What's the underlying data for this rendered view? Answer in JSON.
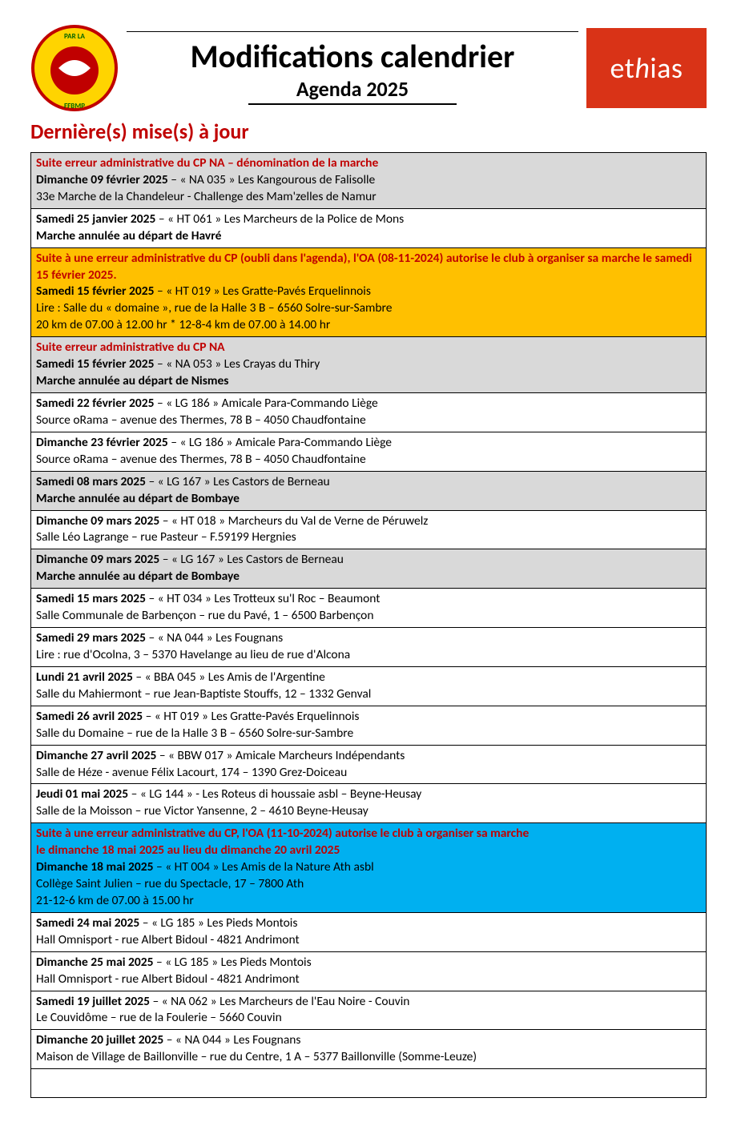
{
  "header": {
    "title_main": "Modifications calendrier",
    "title_sub": "Agenda 2025",
    "logo_right_text": "ethias"
  },
  "section_title": "Dernière(s) mise(s) à jour",
  "colors": {
    "red_text": "#c00000",
    "grey_bg": "#d9d9d9",
    "orange_bg": "#ffc000",
    "blue_bg": "#00b0f0",
    "ethias_bg": "#d93317"
  },
  "rows": [
    {
      "bg": "grey",
      "lines": [
        {
          "text": "Suite erreur administrative du CP NA – dénomination de la marche",
          "style": "red"
        },
        {
          "prefix": "Dimanche 09 février 2025",
          "prefix_style": "b",
          "rest": " – « NA  035 » Les Kangourous de Falisolle"
        },
        {
          "text": "33e Marche de la Chandeleur - Challenge des Mam'zelles de Namur"
        }
      ]
    },
    {
      "bg": "white",
      "lines": [
        {
          "prefix": "Samedi 25 janvier 2025",
          "prefix_style": "b",
          "rest": " – « HT  061 » Les Marcheurs de la Police de Mons"
        },
        {
          "text": "Marche annulée au départ de Havré",
          "style": "b"
        }
      ]
    },
    {
      "bg": "orange",
      "lines": [
        {
          "text": "Suite à une erreur administrative du CP (oubli dans l'agenda), l'OA (08-11-2024) autorise le club à organiser sa marche le samedi 15 février 2025.",
          "style": "red"
        },
        {
          "prefix": "Samedi 15 février 2025",
          "prefix_style": "b",
          "rest": " – « HT  019 » Les Gratte-Pavés Erquelinnois"
        },
        {
          "text": "Lire : Salle du « domaine », rue de la Halle 3 B – 6560 Solre-sur-Sambre"
        },
        {
          "text": "20 km de 07.00 à 12.00 hr * 12-8-4 km de 07.00 à 14.00 hr"
        }
      ]
    },
    {
      "bg": "grey",
      "lines": [
        {
          "text": "Suite erreur administrative du CP NA",
          "style": "red"
        },
        {
          "prefix": "Samedi 15 février 2025",
          "prefix_style": "b",
          "rest": " – « NA  053 » Les Crayas du Thiry"
        },
        {
          "text": "Marche annulée au départ de Nismes",
          "style": "b"
        }
      ]
    },
    {
      "bg": "white",
      "lines": [
        {
          "prefix": "Samedi 22 février 2025",
          "prefix_style": "b",
          "rest": " – « LG 186 » Amicale Para-Commando Liège"
        },
        {
          "text": "Source oRama – avenue des Thermes, 78 B – 4050 Chaudfontaine"
        }
      ]
    },
    {
      "bg": "white",
      "lines": [
        {
          "prefix": "Dimanche 23 février 2025",
          "prefix_style": "b",
          "rest": " – « LG 186 » Amicale Para-Commando Liège"
        },
        {
          "text": "Source oRama – avenue des Thermes, 78 B – 4050 Chaudfontaine"
        }
      ]
    },
    {
      "bg": "grey",
      "lines": [
        {
          "prefix": "Samedi 08 mars 2025",
          "prefix_style": "b",
          "rest": " – « LG  167 » Les Castors de Berneau"
        },
        {
          "text": "Marche annulée au départ de Bombaye",
          "style": "b"
        }
      ]
    },
    {
      "bg": "white",
      "lines": [
        {
          "prefix": "Dimanche 09 mars 2025",
          "prefix_style": "b",
          "rest": " – « HT  018 » Marcheurs du Val de Verne de Péruwelz"
        },
        {
          "text": "Salle Léo Lagrange – rue Pasteur – F.59199 Hergnies"
        }
      ]
    },
    {
      "bg": "grey",
      "lines": [
        {
          "prefix": "Dimanche 09 mars 2025",
          "prefix_style": "b",
          "rest": " – « LG  167 » Les Castors de Berneau"
        },
        {
          "text": "Marche annulée au départ de Bombaye",
          "style": "b"
        }
      ]
    },
    {
      "bg": "white",
      "lines": [
        {
          "prefix": "Samedi 15 mars 2025",
          "prefix_style": "b",
          "rest": " – « HT  034 » Les Trotteux su'l Roc – Beaumont"
        },
        {
          "text": "Salle Communale de Barbençon – rue du Pavé, 1 – 6500 Barbençon"
        }
      ]
    },
    {
      "bg": "white",
      "lines": [
        {
          "prefix": "Samedi 29 mars 2025",
          "prefix_style": "b",
          "rest": " – « NA  044 » Les Fougnans"
        },
        {
          "text": "Lire : rue d'Ocolna, 3 – 5370 Havelange au lieu de rue d'Alcona"
        }
      ]
    },
    {
      "bg": "white",
      "lines": [
        {
          "prefix": "Lundi 21 avril 2025",
          "prefix_style": "b",
          "rest": " – « BBA 045 » Les Amis de l'Argentine"
        },
        {
          "text": "Salle du Mahiermont – rue Jean-Baptiste Stouffs, 12 – 1332 Genval"
        }
      ]
    },
    {
      "bg": "white",
      "lines": [
        {
          "prefix": "Samedi 26 avril 2025",
          "prefix_style": "b",
          "rest": " – « HT  019 » Les Gratte-Pavés Erquelinnois"
        },
        {
          "text": "Salle du Domaine – rue de la Halle 3 B – 6560 Solre-sur-Sambre"
        }
      ]
    },
    {
      "bg": "white",
      "lines": [
        {
          "prefix": "Dimanche 27 avril 2025",
          "prefix_style": "b",
          "rest": " – « BBW 017 » Amicale Marcheurs Indépendants"
        },
        {
          "text": "Salle de Héze - avenue Félix Lacourt, 174 – 1390 Grez-Doiceau"
        }
      ]
    },
    {
      "bg": "white",
      "lines": [
        {
          "prefix": "Jeudi 01 mai 2025",
          "prefix_style": "b",
          "rest": " – « LG  144 » - Les Roteus di houssaie asbl – Beyne-Heusay"
        },
        {
          "text": "Salle de la Moisson – rue Victor Yansenne, 2 – 4610 Beyne-Heusay"
        }
      ]
    },
    {
      "bg": "blue",
      "lines": [
        {
          "text": "Suite à une erreur administrative du CP, l'OA (11-10-2024) autorise le club à organiser sa marche",
          "style": "red"
        },
        {
          "text": "le dimanche 18 mai 2025 au lieu du dimanche 20 avril 2025",
          "style": "red"
        },
        {
          "prefix": "Dimanche 18 mai 2025",
          "prefix_style": "b",
          "rest": " – « HT  004 » Les Amis de la Nature Ath asbl"
        },
        {
          "text": "Collège Saint Julien – rue du Spectacle, 17 – 7800 Ath"
        },
        {
          "text": "21-12-6 km de 07.00 à 15.00 hr"
        }
      ]
    },
    {
      "bg": "white",
      "lines": [
        {
          "prefix": "Samedi 24 mai 2025",
          "prefix_style": "b",
          "rest": " – « LG  185 » Les Pieds Montois"
        },
        {
          "text": "Hall Omnisport - rue Albert Bidoul - 4821 Andrimont"
        }
      ]
    },
    {
      "bg": "white",
      "lines": [
        {
          "prefix": "Dimanche 25 mai 2025",
          "prefix_style": "b",
          "rest": " – « LG  185 » Les Pieds Montois"
        },
        {
          "text": "Hall Omnisport - rue Albert Bidoul - 4821 Andrimont"
        }
      ]
    },
    {
      "bg": "white",
      "lines": [
        {
          "prefix": "Samedi 19 juillet 2025",
          "prefix_style": "b",
          "rest": " – « NA  062 » Les Marcheurs de l'Eau Noire - Couvin"
        },
        {
          "text": "Le Couvidôme – rue de la Foulerie – 5660 Couvin"
        }
      ]
    },
    {
      "bg": "white",
      "lines": [
        {
          "prefix": "Dimanche 20 juillet 2025",
          "prefix_style": "b",
          "rest": " – « NA  044 » Les Fougnans"
        },
        {
          "text": "Maison de Village de Baillonville – rue du Centre, 1 A – 5377 Baillonville (Somme-Leuze)"
        }
      ]
    },
    {
      "bg": "white",
      "empty": true
    }
  ]
}
